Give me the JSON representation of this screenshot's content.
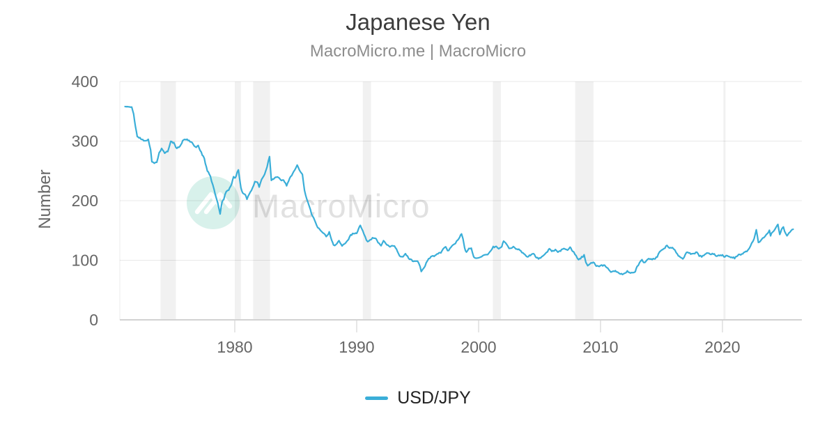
{
  "title": "Japanese Yen",
  "subtitle": "MacroMicro.me | MacroMicro",
  "watermark": {
    "text": "MacroMicro"
  },
  "legend": [
    {
      "label": "USD/JPY",
      "color": "#3aaed8"
    }
  ],
  "colors": {
    "series": "#3aaed8",
    "grid": "rgba(0,0,0,0.09)",
    "plot_left_border": "rgba(0,0,0,0.08)",
    "axis_line": "#d2d2d2",
    "tick_mark": "#cccccc",
    "tick_label": "#666666",
    "title_text": "#3c3c3c",
    "subtitle_text": "#8d8d8d",
    "recession_band": "rgba(0,0,0,0.055)",
    "watermark_circle": "#d8f1eb",
    "watermark_logo": "#ffffff",
    "watermark_text": "#e1e1e1",
    "legend_label": "#222222",
    "background": "#ffffff"
  },
  "chart_data": {
    "type": "line",
    "title": "Japanese Yen",
    "subtitle": "MacroMicro.me | MacroMicro",
    "xlabel": "",
    "ylabel": "Number",
    "xlim": [
      1970.6,
      2026.5
    ],
    "ylim": [
      0,
      400
    ],
    "xticks": [
      1980,
      1990,
      2000,
      2010,
      2020
    ],
    "yticks": [
      0,
      100,
      200,
      300,
      400
    ],
    "grid": "horizontal",
    "legend_position": "bottom-center",
    "recession_bands": [
      [
        1973.9,
        1975.17
      ],
      [
        1980.0,
        1980.5
      ],
      [
        1981.5,
        1982.88
      ],
      [
        1990.5,
        1991.17
      ],
      [
        2001.17,
        2001.83
      ],
      [
        2007.92,
        2009.42
      ],
      [
        2020.08,
        2020.25
      ]
    ],
    "series": [
      {
        "name": "USD/JPY",
        "color": "#3aaed8",
        "x": [
          1971.0,
          1971.3,
          1971.55,
          1971.7,
          1971.85,
          1972.0,
          1972.3,
          1972.6,
          1972.9,
          1973.1,
          1973.2,
          1973.4,
          1973.6,
          1973.8,
          1974.0,
          1974.25,
          1974.5,
          1974.75,
          1975.0,
          1975.25,
          1975.5,
          1975.8,
          1976.0,
          1976.25,
          1976.5,
          1976.75,
          1977.0,
          1977.25,
          1977.5,
          1977.75,
          1978.0,
          1978.2,
          1978.4,
          1978.6,
          1978.8,
          1978.95,
          1979.1,
          1979.3,
          1979.5,
          1979.75,
          1979.9,
          1980.05,
          1980.2,
          1980.3,
          1980.5,
          1980.65,
          1980.85,
          1981.0,
          1981.2,
          1981.45,
          1981.65,
          1981.85,
          1982.0,
          1982.2,
          1982.45,
          1982.65,
          1982.85,
          1983.0,
          1983.25,
          1983.5,
          1983.75,
          1984.0,
          1984.25,
          1984.5,
          1984.75,
          1985.0,
          1985.12,
          1985.3,
          1985.55,
          1985.72,
          1985.9,
          1986.1,
          1986.3,
          1986.55,
          1986.8,
          1987.0,
          1987.3,
          1987.5,
          1987.75,
          1987.95,
          1988.1,
          1988.3,
          1988.55,
          1988.8,
          1989.0,
          1989.25,
          1989.5,
          1989.75,
          1990.0,
          1990.15,
          1990.3,
          1990.5,
          1990.7,
          1990.9,
          1991.1,
          1991.3,
          1991.5,
          1991.75,
          1992.0,
          1992.2,
          1992.4,
          1992.65,
          1992.9,
          1993.1,
          1993.35,
          1993.6,
          1993.8,
          1994.0,
          1994.25,
          1994.5,
          1994.75,
          1995.0,
          1995.2,
          1995.3,
          1995.5,
          1995.7,
          1995.9,
          1996.1,
          1996.35,
          1996.6,
          1996.9,
          1997.1,
          1997.3,
          1997.45,
          1997.65,
          1997.9,
          1998.1,
          1998.3,
          1998.6,
          1998.72,
          1998.85,
          1999.0,
          1999.2,
          1999.4,
          1999.6,
          1999.8,
          2000.0,
          2000.25,
          2000.5,
          2000.75,
          2001.0,
          2001.2,
          2001.45,
          2001.65,
          2001.9,
          2002.05,
          2002.2,
          2002.4,
          2002.6,
          2002.85,
          2003.05,
          2003.3,
          2003.55,
          2003.8,
          2004.0,
          2004.25,
          2004.5,
          2004.75,
          2005.0,
          2005.25,
          2005.5,
          2005.8,
          2006.0,
          2006.3,
          2006.5,
          2006.8,
          2007.0,
          2007.3,
          2007.5,
          2007.8,
          2008.0,
          2008.2,
          2008.45,
          2008.65,
          2008.8,
          2008.95,
          2009.15,
          2009.4,
          2009.65,
          2009.9,
          2010.1,
          2010.35,
          2010.6,
          2010.85,
          2011.05,
          2011.3,
          2011.55,
          2011.8,
          2012.0,
          2012.2,
          2012.45,
          2012.65,
          2012.85,
          2013.0,
          2013.2,
          2013.4,
          2013.55,
          2013.75,
          2013.95,
          2014.15,
          2014.4,
          2014.65,
          2014.85,
          2015.0,
          2015.2,
          2015.45,
          2015.65,
          2015.9,
          2016.1,
          2016.3,
          2016.55,
          2016.75,
          2016.95,
          2017.15,
          2017.4,
          2017.65,
          2017.9,
          2018.1,
          2018.3,
          2018.55,
          2018.8,
          2019.0,
          2019.25,
          2019.5,
          2019.75,
          2020.0,
          2020.15,
          2020.3,
          2020.5,
          2020.75,
          2021.0,
          2021.25,
          2021.5,
          2021.75,
          2022.0,
          2022.2,
          2022.4,
          2022.6,
          2022.78,
          2022.95,
          2023.1,
          2023.3,
          2023.5,
          2023.7,
          2023.85,
          2023.95,
          2024.1,
          2024.3,
          2024.5,
          2024.55,
          2024.7,
          2024.85,
          2025.0,
          2025.1,
          2025.3,
          2025.45,
          2025.6,
          2025.8
        ],
        "values": [
          358,
          357.5,
          357,
          345,
          325,
          308,
          304,
          301,
          302,
          285,
          266,
          263,
          265,
          280,
          288,
          279,
          283,
          299,
          297,
          287,
          292,
          302,
          303,
          300,
          297,
          290,
          292,
          281,
          270,
          250,
          241,
          226,
          211,
          196,
          178,
          196,
          203,
          216,
          218,
          228,
          241,
          238,
          247,
          251,
          222,
          213,
          210,
          203,
          211,
          221,
          231,
          232,
          224,
          236,
          244,
          257,
          275,
          235,
          238,
          240,
          235,
          234,
          226,
          237,
          245,
          254,
          261,
          251,
          245,
          216,
          203,
          192,
          178,
          167,
          156,
          152,
          145,
          140,
          147,
          133,
          125,
          126,
          133,
          125,
          128,
          133,
          142,
          145,
          146,
          153,
          159,
          150,
          138,
          131,
          134,
          138,
          138,
          130,
          125,
          132,
          127,
          123,
          124,
          125,
          114,
          105,
          107,
          111,
          104,
          100,
          98,
          99,
          90,
          81,
          86,
          95,
          102,
          106,
          107,
          110,
          113,
          119,
          123,
          116,
          119,
          126,
          129,
          135,
          144,
          136,
          120,
          113,
          119,
          121,
          105,
          103,
          105,
          107,
          108,
          109,
          115,
          122,
          123,
          119,
          123,
          133,
          129,
          123,
          119,
          123,
          119,
          118,
          114,
          109,
          106,
          109,
          111,
          104,
          103,
          106,
          111,
          119,
          116,
          117,
          113,
          117,
          120,
          118,
          122,
          113,
          107,
          100,
          105,
          108,
          96,
          91,
          94,
          97,
          91,
          89,
          91,
          92,
          86,
          81,
          82,
          81,
          77,
          77,
          78,
          82,
          79,
          79,
          81,
          90,
          95,
          101,
          96,
          99,
          102,
          102,
          102,
          106,
          115,
          118,
          120,
          124,
          121,
          122,
          117,
          110,
          105,
          101,
          110,
          114,
          111,
          111,
          113,
          108,
          106,
          110,
          113,
          109,
          111,
          107,
          108,
          109,
          106,
          108,
          106,
          105,
          104,
          108,
          110,
          113,
          115,
          121,
          129,
          136,
          151,
          130,
          132,
          136,
          141,
          145,
          151,
          142,
          147,
          152,
          160,
          161,
          144,
          152,
          157,
          148,
          141,
          145,
          148,
          152
        ]
      }
    ]
  }
}
